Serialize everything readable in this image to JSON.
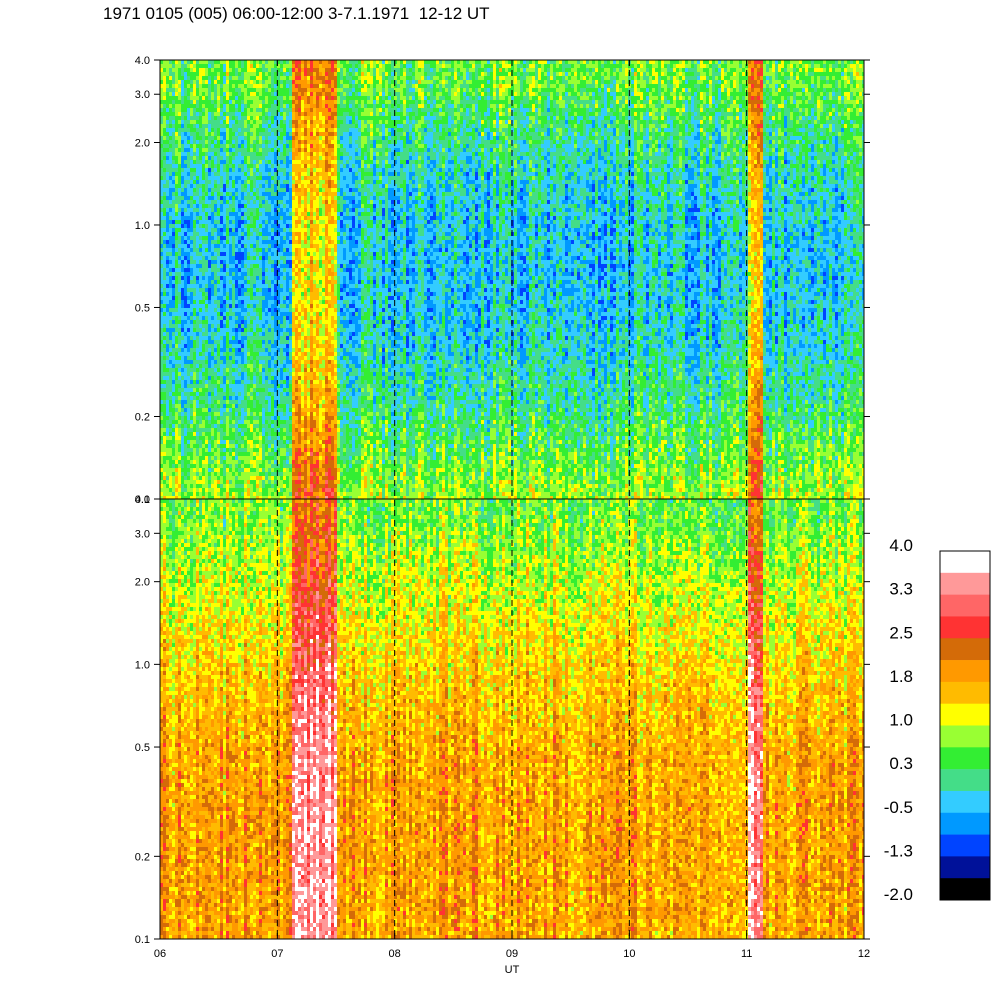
{
  "title": "1971 0105 (005) 06:00-12:00 3-7.1.1971  12-12 UT",
  "chart_data": {
    "type": "heatmap",
    "x_axis": {
      "label": "UT",
      "range": [
        6,
        12
      ],
      "ticks": [
        6,
        7,
        8,
        9,
        10,
        11,
        12
      ],
      "tick_labels": [
        "06",
        "07",
        "08",
        "09",
        "10",
        "11",
        "12"
      ]
    },
    "y_axis": {
      "scale": "log",
      "range": [
        0.1,
        4.0
      ],
      "ticks": [
        0.1,
        0.2,
        0.5,
        1.0,
        2.0,
        3.0,
        4.0
      ],
      "tick_labels": [
        "0.1",
        "0.2",
        "0.5",
        "1.0",
        "2.0",
        "3.0",
        "4.0"
      ]
    },
    "hour_marker_lines": [
      7,
      8,
      9,
      10,
      11
    ],
    "panels": [
      {
        "position": "top",
        "dominant_level_range": [
          -1.0,
          1.0
        ],
        "enhanced_time_intervals": [
          [
            7.1,
            7.5
          ],
          [
            11.0,
            11.12
          ]
        ]
      },
      {
        "position": "bottom",
        "dominant_level_range": [
          0.5,
          2.5
        ],
        "enhanced_time_intervals": [
          [
            7.1,
            7.5
          ],
          [
            11.0,
            11.12
          ]
        ]
      }
    ],
    "colorbar": {
      "labels": [
        "4.0",
        "3.3",
        "2.5",
        "1.8",
        "1.0",
        "0.3",
        "-0.5",
        "-1.3",
        "-2.0"
      ],
      "colors": [
        "#ffffff",
        "#ff9999",
        "#ff6666",
        "#ff3333",
        "#d46b08",
        "#ff9900",
        "#ffbb00",
        "#ffff00",
        "#99ff33",
        "#33ee33",
        "#44dd88",
        "#33ccff",
        "#0099ff",
        "#0044ff",
        "#001199",
        "#000000"
      ]
    }
  }
}
